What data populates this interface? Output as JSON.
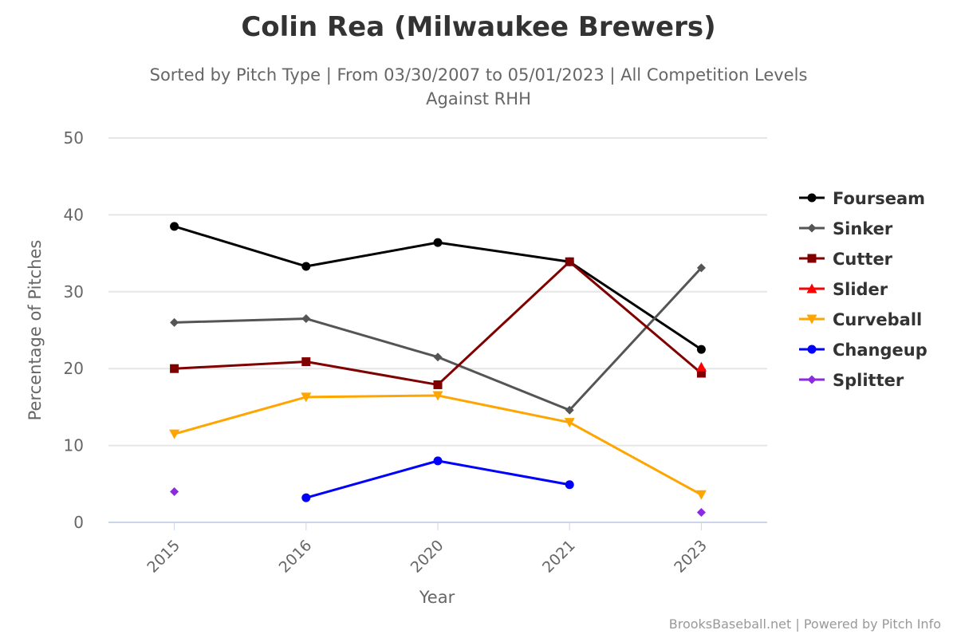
{
  "chart_data": {
    "type": "line",
    "title": "Colin Rea (Milwaukee Brewers)",
    "subtitle_line1": "Sorted by Pitch Type | From 03/30/2007 to 05/01/2023 | All Competition Levels",
    "subtitle_line2": "Against RHH",
    "xlabel": "Year",
    "ylabel": "Percentage of Pitches",
    "categories": [
      "2015",
      "2016",
      "2020",
      "2021",
      "2023"
    ],
    "ylim": [
      0,
      50
    ],
    "yticks": [
      "0",
      "10",
      "20",
      "30",
      "40",
      "50"
    ],
    "grid": true,
    "legend_position": "right",
    "series": [
      {
        "name": "Fourseam",
        "color": "#000000",
        "marker": "circle",
        "values": [
          38.5,
          33.3,
          36.4,
          33.9,
          22.5
        ]
      },
      {
        "name": "Sinker",
        "color": "#555555",
        "marker": "diamond",
        "values": [
          26.0,
          26.5,
          21.5,
          14.6,
          33.1
        ]
      },
      {
        "name": "Cutter",
        "color": "#800000",
        "marker": "square",
        "values": [
          20.0,
          20.9,
          17.9,
          33.9,
          19.4
        ]
      },
      {
        "name": "Slider",
        "color": "#ff0000",
        "marker": "triangle",
        "values": [
          null,
          null,
          null,
          null,
          20.2
        ]
      },
      {
        "name": "Curveball",
        "color": "#ffa500",
        "marker": "triangle-down",
        "values": [
          11.5,
          16.3,
          16.5,
          13.0,
          3.6
        ]
      },
      {
        "name": "Changeup",
        "color": "#0000ff",
        "marker": "circle",
        "values": [
          null,
          3.2,
          8.0,
          4.9,
          null
        ]
      },
      {
        "name": "Splitter",
        "color": "#8a2be2",
        "marker": "diamond",
        "values": [
          4.0,
          null,
          null,
          null,
          1.3
        ]
      }
    ]
  },
  "credit": "BrooksBaseball.net | Powered by Pitch Info"
}
